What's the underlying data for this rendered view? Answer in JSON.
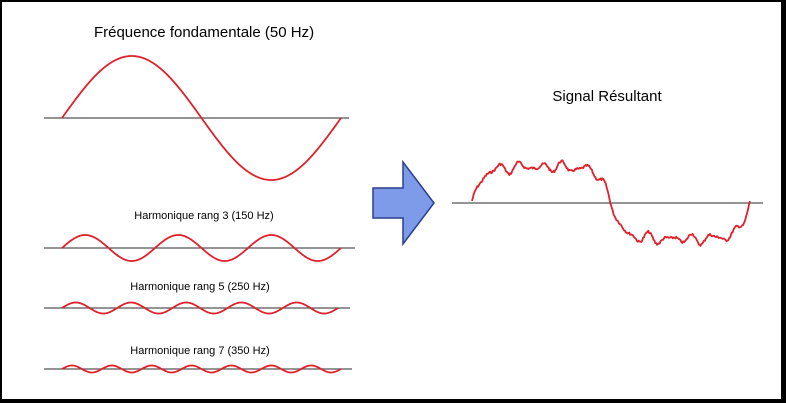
{
  "fundamental": {
    "title": "Fréquence fondamentale (50 Hz)"
  },
  "harmonics": [
    {
      "title": "Harmonique rang 3 (150 Hz)",
      "order": 3,
      "relative_amplitude": 0.25
    },
    {
      "title": "Harmonique rang 5 (250 Hz)",
      "order": 5,
      "relative_amplitude": 0.1
    },
    {
      "title": "Harmonique rang 7 (350 Hz)",
      "order": 7,
      "relative_amplitude": 0.05
    }
  ],
  "result": {
    "title": "Signal Résultant"
  },
  "arrow": {
    "fill": "#7d9be8",
    "stroke": "#2a3f8e"
  },
  "colors": {
    "wave": "#e0202a",
    "axis": "#555555",
    "text": "#000000"
  }
}
